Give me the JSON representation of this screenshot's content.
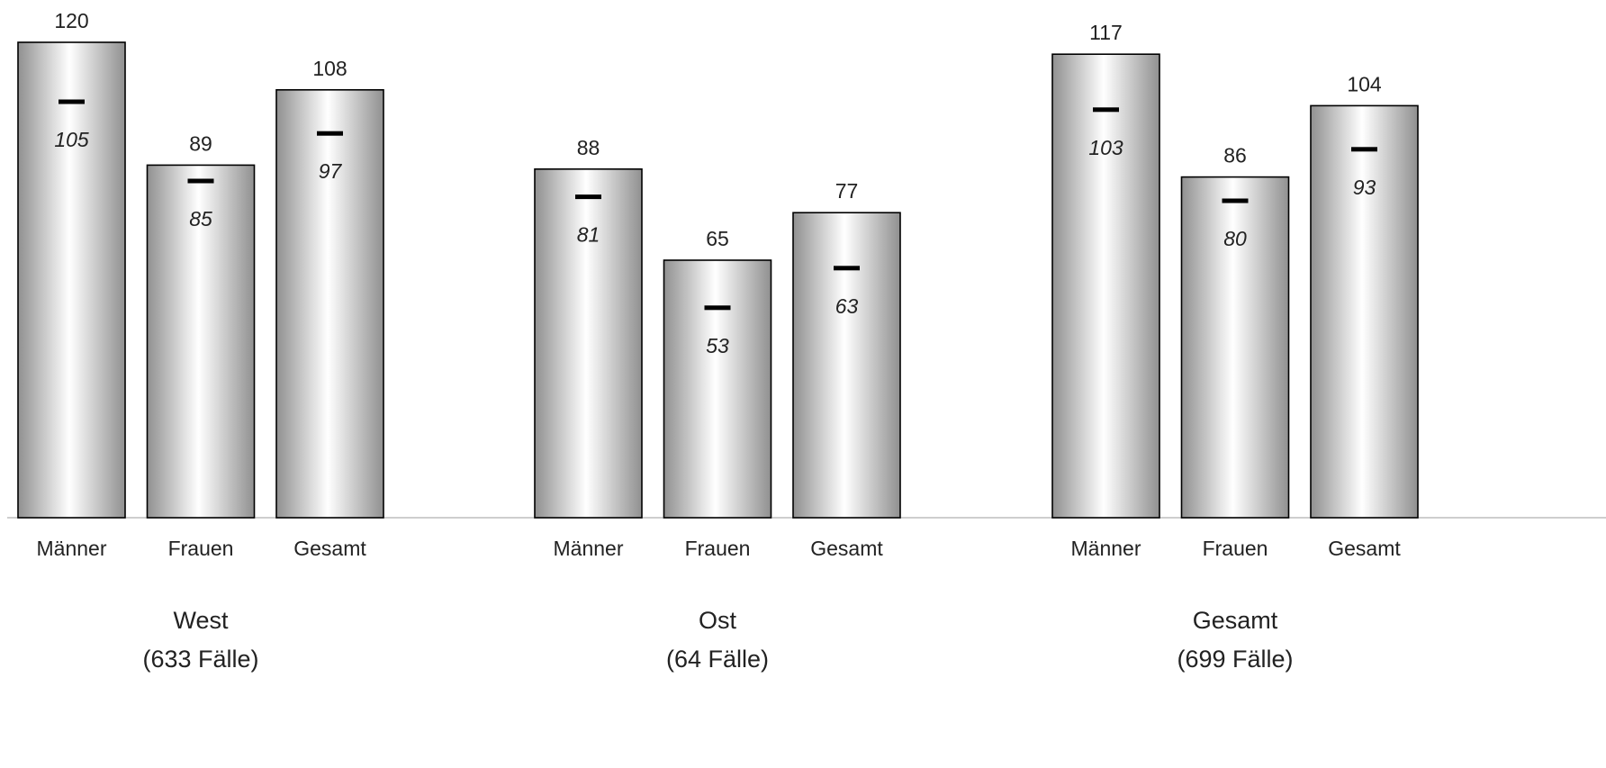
{
  "chart_data": {
    "type": "bar",
    "title": "",
    "xlabel": "",
    "ylabel": "",
    "ylim": [
      0,
      120
    ],
    "grid": false,
    "bar_style": "cylinder-gradient",
    "colors": {
      "bar_edge": "#909090",
      "bar_center": "#ffffff",
      "outline": "#000000",
      "median_mark": "#000000",
      "baseline": "#bdbdbd"
    },
    "series": [
      {
        "name": "",
        "role": "mean",
        "label_style": "plain"
      },
      {
        "name": "",
        "role": "median",
        "label_style": "italic",
        "marker": "dash"
      }
    ],
    "groups": [
      {
        "label_line1": "West",
        "label_line2": "(633 Fälle)",
        "bars": [
          {
            "category": "Männer",
            "value": 120,
            "median": 105
          },
          {
            "category": "Frauen",
            "value": 89,
            "median": 85
          },
          {
            "category": "Gesamt",
            "value": 108,
            "median": 97
          }
        ]
      },
      {
        "label_line1": "Ost",
        "label_line2": "(64 Fälle)",
        "bars": [
          {
            "category": "Männer",
            "value": 88,
            "median": 81
          },
          {
            "category": "Frauen",
            "value": 65,
            "median": 53
          },
          {
            "category": "Gesamt",
            "value": 77,
            "median": 63
          }
        ]
      },
      {
        "label_line1": "Gesamt",
        "label_line2": "(699 Fälle)",
        "bars": [
          {
            "category": "Männer",
            "value": 117,
            "median": 103
          },
          {
            "category": "Frauen",
            "value": 86,
            "median": 80
          },
          {
            "category": "Gesamt",
            "value": 104,
            "median": 93
          }
        ]
      }
    ]
  }
}
